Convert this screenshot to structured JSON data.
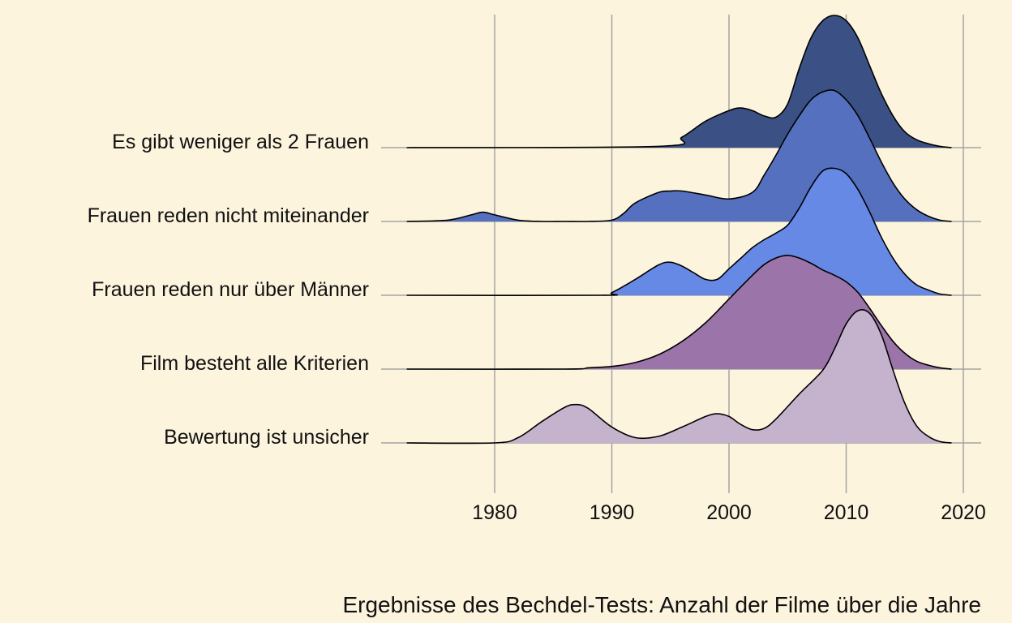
{
  "chart_data": {
    "type": "ridgeline",
    "title": "",
    "caption": "Ergebnisse des Bechdel-Tests: Anzahl der Filme über die Jahre",
    "xlabel": "",
    "ylabel": "",
    "xlim": [
      1970,
      2020
    ],
    "xticks": [
      1980,
      1990,
      2000,
      2010,
      2020
    ],
    "grid": "vertical",
    "legend": "none",
    "series": [
      {
        "name": "Es gibt weniger als 2 Frauen",
        "color": "#3b5084",
        "x": [
          1970,
          1994,
          1996,
          1998,
          2000,
          2001,
          2002,
          2003,
          2004,
          2005,
          2006,
          2007,
          2008,
          2009,
          2010,
          2011,
          2012,
          2013,
          2014,
          2015,
          2016,
          2017,
          2018,
          2019
        ],
        "density": [
          0,
          0.01,
          0.08,
          0.2,
          0.28,
          0.3,
          0.28,
          0.24,
          0.23,
          0.33,
          0.6,
          0.83,
          0.96,
          1.0,
          0.96,
          0.83,
          0.62,
          0.41,
          0.24,
          0.12,
          0.06,
          0.03,
          0.01,
          0
        ]
      },
      {
        "name": "Frauen reden nicht miteinander",
        "color": "#5470bf",
        "x": [
          1970,
          1976,
          1978,
          1979,
          1980,
          1982,
          1984,
          1986,
          1988,
          1990,
          1991,
          1992,
          1994,
          1995,
          1996,
          1998,
          2000,
          2002,
          2003,
          2004,
          2005,
          2006,
          2007,
          2008,
          2009,
          2010,
          2011,
          2012,
          2013,
          2014,
          2015,
          2016,
          2017,
          2018,
          2019
        ],
        "density": [
          0,
          0.01,
          0.05,
          0.07,
          0.05,
          0.01,
          0,
          0,
          0,
          0.01,
          0.06,
          0.14,
          0.22,
          0.23,
          0.23,
          0.2,
          0.17,
          0.22,
          0.35,
          0.5,
          0.66,
          0.8,
          0.92,
          0.98,
          0.99,
          0.92,
          0.8,
          0.63,
          0.45,
          0.29,
          0.17,
          0.09,
          0.04,
          0.01,
          0
        ]
      },
      {
        "name": "Frauen reden nur über Männer",
        "color": "#6789e6",
        "x": [
          1970,
          1989,
          1990,
          1992,
          1994,
          1995,
          1996,
          1997,
          1998,
          1999,
          2000,
          2001,
          2002,
          2003,
          2004,
          2005,
          2006,
          2007,
          2008,
          2009,
          2010,
          2011,
          2012,
          2013,
          2014,
          2015,
          2016,
          2017,
          2018,
          2019
        ],
        "density": [
          0,
          0,
          0.02,
          0.12,
          0.23,
          0.25,
          0.22,
          0.17,
          0.12,
          0.12,
          0.2,
          0.28,
          0.36,
          0.42,
          0.47,
          0.53,
          0.66,
          0.82,
          0.94,
          0.96,
          0.92,
          0.8,
          0.63,
          0.44,
          0.28,
          0.16,
          0.08,
          0.04,
          0.01,
          0
        ]
      },
      {
        "name": "Film besteht alle Kriterien",
        "color": "#9b74aa",
        "x": [
          1970,
          1986,
          1988,
          1990,
          1992,
          1994,
          1996,
          1998,
          2000,
          2002,
          2003,
          2004,
          2005,
          2006,
          2007,
          2008,
          2009,
          2010,
          2011,
          2012,
          2013,
          2014,
          2015,
          2016,
          2017,
          2018,
          2019
        ],
        "density": [
          0,
          0,
          0.01,
          0.02,
          0.05,
          0.11,
          0.21,
          0.35,
          0.53,
          0.71,
          0.79,
          0.84,
          0.86,
          0.84,
          0.8,
          0.75,
          0.71,
          0.66,
          0.58,
          0.46,
          0.33,
          0.21,
          0.12,
          0.06,
          0.03,
          0.01,
          0
        ]
      },
      {
        "name": "Bewertung ist unsicher",
        "color": "#c5b3cd",
        "x": [
          1970,
          1980,
          1982,
          1984,
          1986,
          1987,
          1988,
          1990,
          1992,
          1994,
          1996,
          1998,
          1999,
          2000,
          2001,
          2002,
          2003,
          2004,
          2006,
          2008,
          2009,
          2010,
          2011,
          2012,
          2013,
          2014,
          2015,
          2016,
          2017,
          2018,
          2019
        ],
        "density": [
          0,
          0,
          0.04,
          0.16,
          0.27,
          0.29,
          0.26,
          0.12,
          0.04,
          0.05,
          0.12,
          0.2,
          0.22,
          0.2,
          0.14,
          0.1,
          0.11,
          0.18,
          0.37,
          0.55,
          0.71,
          0.9,
          1.0,
          0.98,
          0.82,
          0.55,
          0.3,
          0.13,
          0.05,
          0.01,
          0
        ]
      }
    ]
  }
}
